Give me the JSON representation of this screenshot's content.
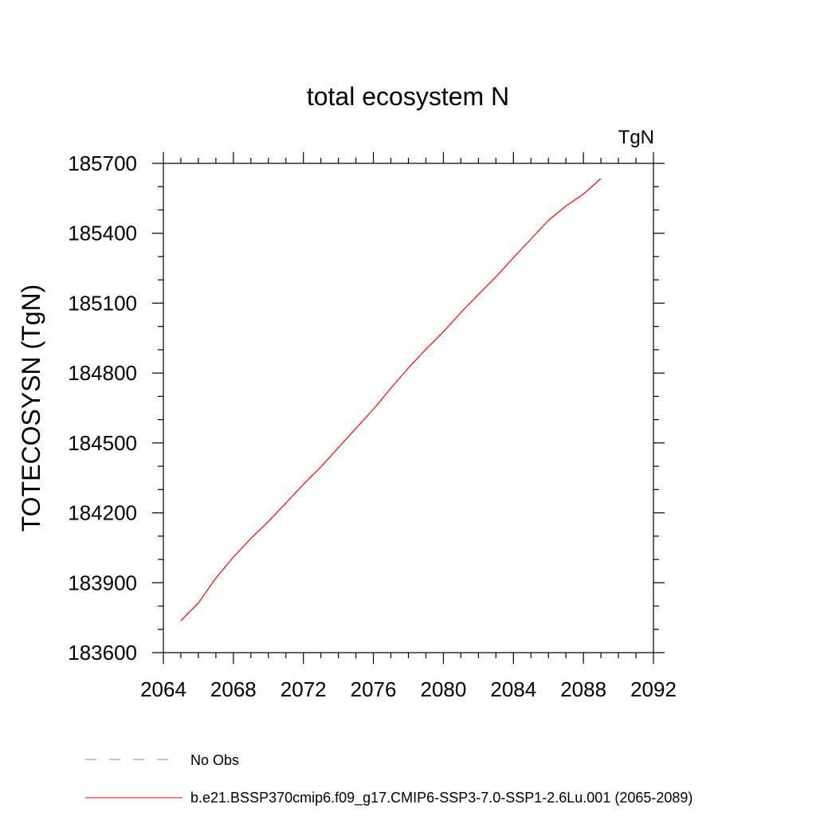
{
  "chart_data": {
    "type": "line",
    "title": "total ecosystem N",
    "units_label": "TgN",
    "ylabel": "TOTECOSYSN  (TgN)",
    "xlabel": "",
    "xlim": [
      2064,
      2092
    ],
    "ylim": [
      183600,
      185700
    ],
    "x_ticks": [
      2064,
      2068,
      2072,
      2076,
      2080,
      2084,
      2088,
      2092
    ],
    "y_ticks": [
      183600,
      183900,
      184200,
      184500,
      184800,
      185100,
      185400,
      185700
    ],
    "grid": false,
    "series": [
      {
        "name": "b.e21.BSSP370cmip6.f09_g17.CMIP6-SSP3-7.0-SSP1-2.6Lu.001 (2065-2089)",
        "color": "#ff0000",
        "x": [
          2065,
          2066,
          2067,
          2068,
          2069,
          2070,
          2071,
          2072,
          2073,
          2074,
          2075,
          2076,
          2077,
          2078,
          2079,
          2080,
          2081,
          2082,
          2083,
          2084,
          2085,
          2086,
          2087,
          2088,
          2089
        ],
        "values": [
          183737,
          183813,
          183920,
          184010,
          184090,
          184163,
          184242,
          184322,
          184397,
          184480,
          184562,
          184645,
          184735,
          184822,
          184902,
          184977,
          185060,
          185137,
          185213,
          185295,
          185375,
          185455,
          185517,
          185568,
          185635
        ]
      }
    ]
  },
  "legend": {
    "obs_label": "No Obs",
    "obs_color": "#7f7fbf",
    "model_label": "b.e21.BSSP370cmip6.f09_g17.CMIP6-SSP3-7.0-SSP1-2.6Lu.001 (2065-2089)",
    "model_color": "#ff0000"
  }
}
